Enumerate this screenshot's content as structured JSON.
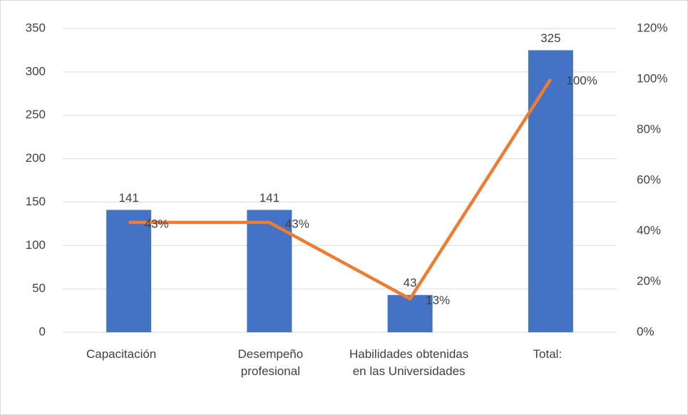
{
  "chart_data": {
    "type": "bar-line",
    "categories": [
      "Capacitación",
      "Desempeño profesional",
      "Habilidades obtenidas en las Universidades",
      "Total:"
    ],
    "series": [
      {
        "type": "bar",
        "color": "#4472c4",
        "axis": "y",
        "values": [
          141,
          141,
          43,
          325
        ]
      },
      {
        "type": "line",
        "color": "#ed7d31",
        "axis": "y2",
        "values": [
          43.4,
          43.4,
          13.2,
          100
        ],
        "value_labels": [
          "43%",
          "43%",
          "13%",
          "100%"
        ]
      }
    ],
    "ylim": [
      0,
      350
    ],
    "yticks": [
      0,
      50,
      100,
      150,
      200,
      250,
      300,
      350
    ],
    "y2lim": [
      0,
      120
    ],
    "y2ticks": [
      {
        "value": 0,
        "label": "0%"
      },
      {
        "value": 20,
        "label": "20%"
      },
      {
        "value": 40,
        "label": "40%"
      },
      {
        "value": 60,
        "label": "60%"
      },
      {
        "value": 80,
        "label": "80%"
      },
      {
        "value": 100,
        "label": "100%"
      },
      {
        "value": 120,
        "label": "120%"
      }
    ],
    "grid": true
  }
}
